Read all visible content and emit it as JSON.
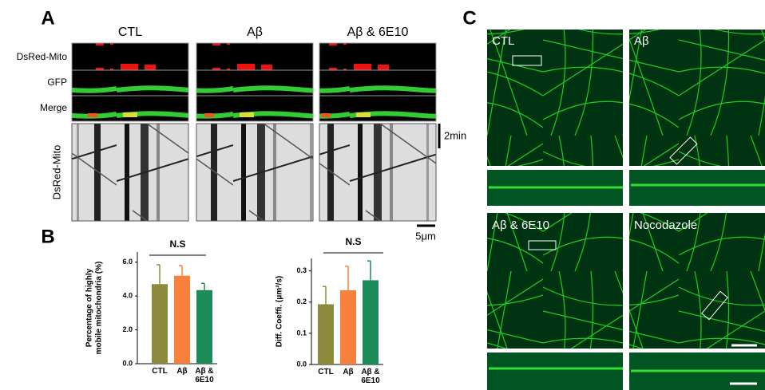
{
  "panel_labels": [
    "A",
    "B",
    "C"
  ],
  "panel_a": {
    "columns": [
      "CTL",
      "Aβ",
      "Aβ & 6E10"
    ],
    "rows": [
      "DsRed-Mito",
      "GFP",
      "Merge"
    ],
    "kymograph_label": "DsRed-Mito",
    "time_scale": "2min",
    "length_scale": "5μm"
  },
  "chart_data": [
    {
      "type": "bar",
      "y_label": [
        "Percentage of highly",
        "mobile mitochondria (%)"
      ],
      "annotation": "N.S",
      "categories": [
        "CTL",
        "Aβ",
        "Aβ & 6E10"
      ],
      "values": [
        4.7,
        5.2,
        4.35
      ],
      "errors": [
        1.15,
        0.6,
        0.4
      ],
      "colors": [
        "#8b8a3c",
        "#f7803c",
        "#1b8c57"
      ],
      "ylim": [
        0,
        6.6
      ],
      "yticks": [
        {
          "value": 0,
          "label": "0.0"
        },
        {
          "value": 2,
          "label": "2.0"
        },
        {
          "value": 4,
          "label": "4.0"
        },
        {
          "value": 6,
          "label": "6.0"
        }
      ]
    },
    {
      "type": "bar",
      "y_label": [
        "Diff. Coeffi. (μm²/s)"
      ],
      "annotation": "N.S",
      "categories": [
        "CTL",
        "Aβ",
        "Aβ & 6E10"
      ],
      "values": [
        0.193,
        0.238,
        0.27
      ],
      "errors": [
        0.057,
        0.077,
        0.062
      ],
      "colors": [
        "#8b8a3c",
        "#f7803c",
        "#1b8c57"
      ],
      "ylim": [
        0,
        0.34
      ],
      "yticks": [
        {
          "value": 0,
          "label": "0.0"
        },
        {
          "value": 0.1,
          "label": "0.1"
        },
        {
          "value": 0.2,
          "label": "0.2"
        },
        {
          "value": 0.3,
          "label": "0.3"
        }
      ]
    }
  ],
  "panel_c": {
    "labels": [
      "CTL",
      "Aβ",
      "Aβ & 6E10",
      "Nocodazole"
    ]
  }
}
